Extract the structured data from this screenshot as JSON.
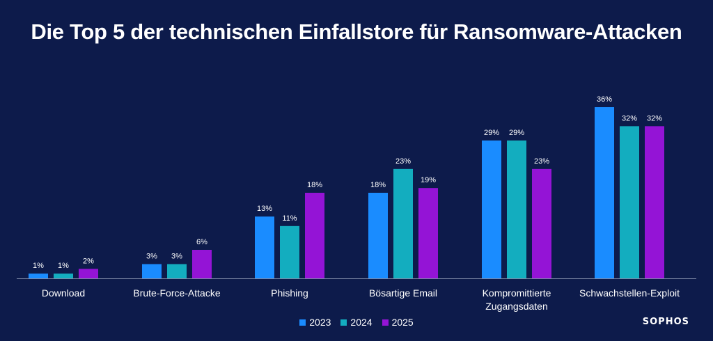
{
  "chart_data": {
    "type": "bar",
    "title": "Die Top 5 der technischen Einfallstore für Ransomware-Attacken",
    "categories": [
      [
        "Download"
      ],
      [
        "Brute-Force-Attacke"
      ],
      [
        "Phishing"
      ],
      [
        "Bösartige Email"
      ],
      [
        "Kompromittierte",
        "Zugangsdaten"
      ],
      [
        "Schwachstellen-Exploit"
      ]
    ],
    "series": [
      {
        "name": "2023",
        "color": "#1a8cff",
        "values": [
          1,
          3,
          13,
          18,
          29,
          36
        ]
      },
      {
        "name": "2024",
        "color": "#13adbf",
        "values": [
          1,
          3,
          11,
          23,
          29,
          32
        ]
      },
      {
        "name": "2025",
        "color": "#9414d6",
        "values": [
          2,
          6,
          18,
          19,
          23,
          32
        ]
      }
    ],
    "value_suffix": "%",
    "ylim": [
      0,
      36
    ],
    "legend_position": "bottom",
    "grid": false
  },
  "brand": "SOPHOS"
}
